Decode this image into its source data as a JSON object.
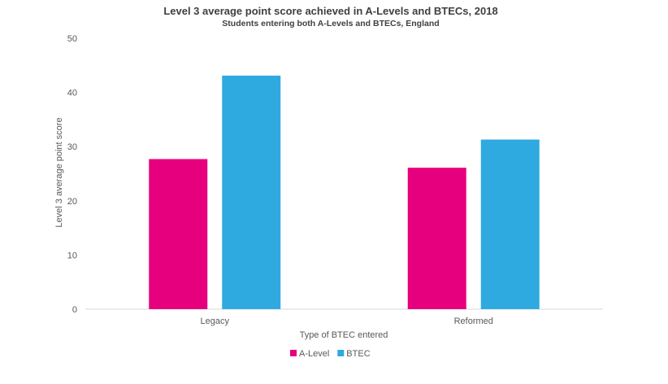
{
  "chart_data": {
    "type": "bar",
    "title": "Level 3 average point score achieved in A-Levels and BTECs, 2018",
    "subtitle": "Students entering both A-Levels and BTECs, England",
    "xlabel": "Type of BTEC entered",
    "ylabel": "Level 3 average point score",
    "categories": [
      "Legacy",
      "Reformed"
    ],
    "ylim": [
      0,
      50
    ],
    "yticks": [
      "0",
      "10",
      "20",
      "30",
      "40",
      "50"
    ],
    "grid": false,
    "legend_position": "bottom",
    "series": [
      {
        "name": "A-Level",
        "values": [
          27.7,
          26.1
        ],
        "color": "#E6007E"
      },
      {
        "name": "BTEC",
        "values": [
          43.1,
          31.3
        ],
        "color": "#2EAAE1"
      }
    ]
  }
}
